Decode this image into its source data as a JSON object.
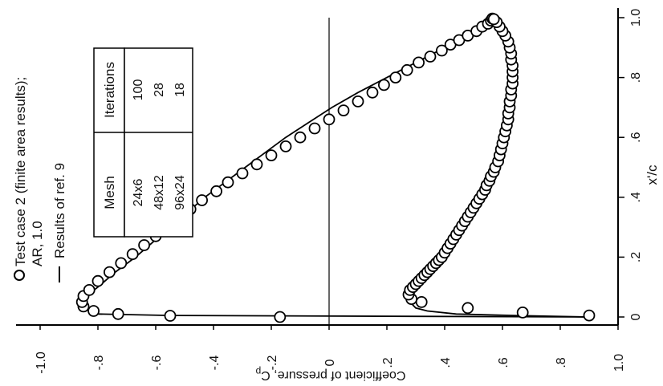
{
  "chart_data": {
    "type": "scatter",
    "orientation": "rotated 90 degrees counter-clockwise (x'/c axis on the right, Cp axis along the bottom)",
    "xlabel": "x'/c",
    "ylabel": "Coefficient of pressure, C",
    "ylabel_subscript": "p",
    "xlim": [
      0,
      1.0
    ],
    "ylim": [
      -1.0,
      1.0
    ],
    "y_inverted": true,
    "xticks": [
      0,
      0.2,
      0.4,
      0.6,
      0.8,
      1.0
    ],
    "xtick_labels": [
      "0",
      ".2",
      ".4",
      ".6",
      ".8",
      "1.0"
    ],
    "yticks": [
      -1.0,
      -0.8,
      -0.6,
      -0.4,
      -0.2,
      0,
      0.2,
      0.4,
      0.6,
      0.8,
      1.0
    ],
    "ytick_labels": [
      "-1.0",
      "-.8",
      "-.6",
      "-.4",
      "-.2",
      "0",
      ".2",
      ".4",
      ".6",
      ".8",
      "1.0"
    ],
    "zero_line": true,
    "grid": false,
    "legend": {
      "placement": "top-left",
      "entries": [
        {
          "marker": "circle",
          "lines": [
            "Test case 2 (finite area results);",
            "AR, 1.0"
          ]
        },
        {
          "marker": "line",
          "lines": [
            "Results of ref. 9"
          ]
        }
      ]
    },
    "table": {
      "headers": [
        "Mesh",
        "Iterations"
      ],
      "rows": [
        [
          "24x6",
          "100"
        ],
        [
          "48x12",
          "28"
        ],
        [
          "96x24",
          "18"
        ]
      ]
    },
    "series": [
      {
        "name": "Test case 2 (finite area results); AR, 1.0",
        "marker": "circle",
        "upper": {
          "x": [
            0.0,
            0.004,
            0.01,
            0.02,
            0.035,
            0.05,
            0.07,
            0.09,
            0.12,
            0.15,
            0.18,
            0.21,
            0.24,
            0.27,
            0.3,
            0.33,
            0.36,
            0.39,
            0.42,
            0.45,
            0.48,
            0.51,
            0.54,
            0.57,
            0.6,
            0.63,
            0.66,
            0.69,
            0.72,
            0.75,
            0.775,
            0.8,
            0.825,
            0.85,
            0.87,
            0.89,
            0.91,
            0.925,
            0.94,
            0.955,
            0.97,
            0.98,
            0.99,
            0.997
          ],
          "cp": [
            -0.17,
            -0.55,
            -0.73,
            -0.815,
            -0.85,
            -0.855,
            -0.85,
            -0.83,
            -0.8,
            -0.76,
            -0.72,
            -0.68,
            -0.64,
            -0.6,
            -0.56,
            -0.52,
            -0.48,
            -0.44,
            -0.39,
            -0.35,
            -0.3,
            -0.25,
            -0.2,
            -0.15,
            -0.1,
            -0.05,
            0.0,
            0.05,
            0.1,
            0.15,
            0.19,
            0.23,
            0.27,
            0.31,
            0.35,
            0.39,
            0.42,
            0.45,
            0.48,
            0.51,
            0.53,
            0.55,
            0.56,
            0.565
          ]
        },
        "lower": {
          "x": [
            0.005,
            0.015,
            0.03,
            0.05,
            0.06,
            0.075,
            0.09,
            0.1,
            0.11,
            0.12,
            0.13,
            0.14,
            0.15,
            0.16,
            0.17,
            0.18,
            0.19,
            0.2,
            0.215,
            0.23,
            0.245,
            0.26,
            0.275,
            0.29,
            0.305,
            0.32,
            0.335,
            0.35,
            0.365,
            0.38,
            0.395,
            0.41,
            0.425,
            0.44,
            0.455,
            0.47,
            0.485,
            0.5,
            0.52,
            0.54,
            0.56,
            0.58,
            0.6,
            0.62,
            0.64,
            0.66,
            0.68,
            0.7,
            0.72,
            0.74,
            0.76,
            0.78,
            0.8,
            0.82,
            0.84,
            0.86,
            0.88,
            0.9,
            0.92,
            0.94,
            0.955,
            0.97,
            0.985,
            0.995
          ],
          "cp": [
            0.9,
            0.67,
            0.48,
            0.32,
            0.285,
            0.275,
            0.28,
            0.29,
            0.3,
            0.31,
            0.32,
            0.33,
            0.34,
            0.35,
            0.36,
            0.37,
            0.38,
            0.39,
            0.4,
            0.41,
            0.42,
            0.43,
            0.44,
            0.45,
            0.46,
            0.47,
            0.48,
            0.49,
            0.5,
            0.51,
            0.52,
            0.53,
            0.54,
            0.545,
            0.555,
            0.56,
            0.57,
            0.575,
            0.585,
            0.59,
            0.595,
            0.6,
            0.605,
            0.61,
            0.615,
            0.62,
            0.62,
            0.625,
            0.625,
            0.63,
            0.63,
            0.635,
            0.635,
            0.635,
            0.635,
            0.63,
            0.63,
            0.625,
            0.62,
            0.61,
            0.6,
            0.59,
            0.58,
            0.57
          ]
        }
      },
      {
        "name": "Results of ref. 9",
        "marker": "line",
        "upper": {
          "x": [
            0.0,
            0.005,
            0.01,
            0.02,
            0.03,
            0.05,
            0.07,
            0.1,
            0.15,
            0.2,
            0.25,
            0.3,
            0.35,
            0.4,
            0.45,
            0.5,
            0.55,
            0.6,
            0.65,
            0.7,
            0.75,
            0.8,
            0.85,
            0.9,
            0.95,
            0.98,
            1.0
          ],
          "cp": [
            0.9,
            -0.55,
            -0.8,
            -0.83,
            -0.85,
            -0.86,
            -0.84,
            -0.8,
            -0.74,
            -0.67,
            -0.61,
            -0.55,
            -0.49,
            -0.43,
            -0.36,
            -0.29,
            -0.22,
            -0.15,
            -0.07,
            0.01,
            0.1,
            0.2,
            0.3,
            0.4,
            0.5,
            0.55,
            0.565
          ]
        },
        "lower": {
          "x": [
            0.0,
            0.005,
            0.01,
            0.02,
            0.03,
            0.05,
            0.07,
            0.1,
            0.15,
            0.2,
            0.25,
            0.3,
            0.35,
            0.4,
            0.45,
            0.5,
            0.55,
            0.6,
            0.65,
            0.7,
            0.75,
            0.8,
            0.85,
            0.9,
            0.95,
            0.98,
            1.0
          ],
          "cp": [
            0.9,
            0.64,
            0.44,
            0.34,
            0.3,
            0.28,
            0.285,
            0.3,
            0.35,
            0.39,
            0.43,
            0.47,
            0.5,
            0.53,
            0.55,
            0.57,
            0.59,
            0.6,
            0.61,
            0.62,
            0.63,
            0.635,
            0.635,
            0.63,
            0.61,
            0.59,
            0.565
          ]
        }
      }
    ]
  }
}
